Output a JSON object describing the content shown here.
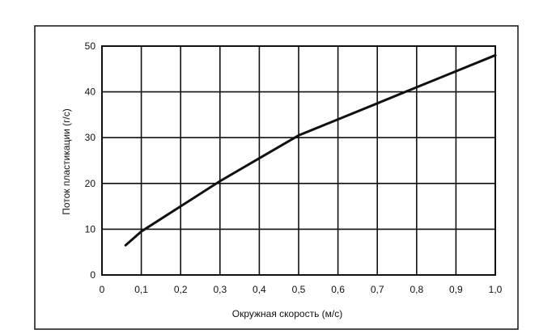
{
  "chart_data": {
    "type": "line",
    "title": "",
    "xlabel": "Окружная скорость (м/с)",
    "ylabel": "Поток пластикации (г/с)",
    "xlim": [
      0,
      1.0
    ],
    "ylim": [
      0,
      50
    ],
    "grid": true,
    "legend": "none",
    "x_ticks": [
      {
        "value": 0,
        "label": "0"
      },
      {
        "value": 0.1,
        "label": "0,1"
      },
      {
        "value": 0.2,
        "label": "0,2"
      },
      {
        "value": 0.3,
        "label": "0,3"
      },
      {
        "value": 0.4,
        "label": "0,4"
      },
      {
        "value": 0.5,
        "label": "0,5"
      },
      {
        "value": 0.6,
        "label": "0,6"
      },
      {
        "value": 0.7,
        "label": "0,7"
      },
      {
        "value": 0.8,
        "label": "0,8"
      },
      {
        "value": 0.9,
        "label": "0,9"
      },
      {
        "value": 1.0,
        "label": "1,0"
      }
    ],
    "y_ticks": [
      {
        "value": 0,
        "label": "0"
      },
      {
        "value": 10,
        "label": "10"
      },
      {
        "value": 20,
        "label": "20"
      },
      {
        "value": 30,
        "label": "30"
      },
      {
        "value": 40,
        "label": "40"
      },
      {
        "value": 50,
        "label": "50"
      }
    ],
    "series": [
      {
        "x": [
          0.06,
          0.1,
          0.2,
          0.3,
          0.4,
          0.5,
          0.6,
          0.7,
          0.8,
          0.9,
          1.0
        ],
        "y": [
          6.5,
          9.5,
          15,
          20.5,
          25.5,
          30.5,
          34,
          37.5,
          41,
          44.5,
          48
        ]
      }
    ],
    "colors": {
      "line": "#111111",
      "grid": "#111111",
      "frame": "#111111"
    }
  }
}
